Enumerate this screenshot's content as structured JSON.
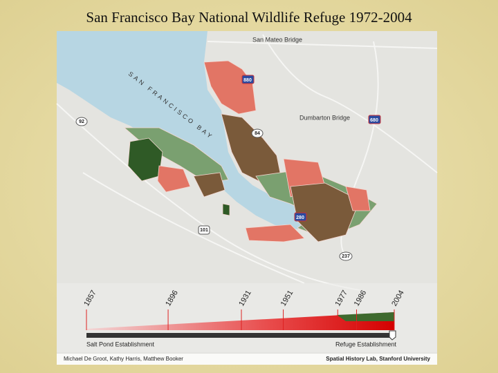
{
  "title": "San Francisco Bay National Wildlife Refuge 1972-2004",
  "map": {
    "labels": {
      "san_mateo": "San Mateo Bridge",
      "bay": "SAN FRANCISCO BAY",
      "dumbarton": "Dumbarton Bridge"
    },
    "shields": {
      "i880": "880",
      "i680": "680",
      "s84": "84",
      "s92": "92",
      "i280": "280",
      "us101": "101",
      "s237": "237"
    }
  },
  "timeline": {
    "years": [
      1857,
      1896,
      1931,
      1951,
      1977,
      1986,
      2004
    ],
    "start_label": "Salt Pond Establishment",
    "end_label": "Refuge Establishment"
  },
  "footer": {
    "authors": "Michael De Groot, Kathy Harris, Matthew Booker",
    "lab": "Spatial History Lab, Stanford University"
  }
}
